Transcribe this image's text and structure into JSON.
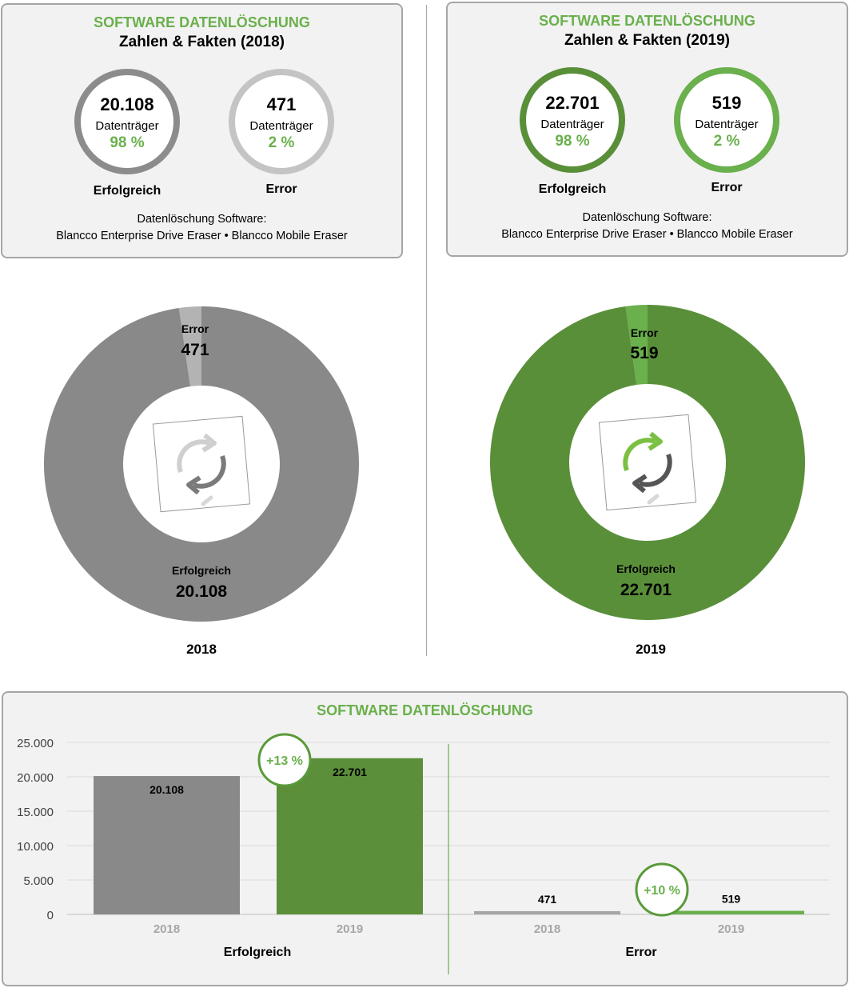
{
  "cards": [
    {
      "title": "SOFTWARE DATENLÖSCHUNG",
      "subtitle": "Zahlen & Fakten (2018)",
      "success": {
        "value": "20.108",
        "unit": "Datenträger",
        "pct": "98 %",
        "label": "Erfolgreich",
        "color": "#8c8c8c"
      },
      "error": {
        "value": "471",
        "unit": "Datenträger",
        "pct": "2 %",
        "label": "Error",
        "color": "#c4c4c4"
      },
      "foot_label": "Datenlöschung Software:",
      "foot_products": "Blancco Enterprise Drive Eraser • Blancco Mobile Eraser"
    },
    {
      "title": "SOFTWARE DATENLÖSCHUNG",
      "subtitle": "Zahlen & Fakten (2019)",
      "success": {
        "value": "22.701",
        "unit": "Datenträger",
        "pct": "98 %",
        "label": "Erfolgreich",
        "color": "#5a8f3a"
      },
      "error": {
        "value": "519",
        "unit": "Datenträger",
        "pct": "2 %",
        "label": "Error",
        "color": "#6ab04c"
      },
      "foot_label": "Datenlöschung Software:",
      "foot_products": "Blancco Enterprise Drive Eraser • Blancco Mobile Eraser"
    }
  ],
  "bar_panel_title": "SOFTWARE DATENLÖSCHUNG",
  "chart_data": [
    {
      "type": "pie",
      "year": "2018",
      "slices": [
        {
          "name": "Error",
          "label": "Error",
          "value": 471,
          "value_label": "471",
          "color": "#b3b3b3"
        },
        {
          "name": "Erfolgreich",
          "label": "Erfolgreich",
          "value": 20108,
          "value_label": "20.108",
          "color": "#898989"
        }
      ],
      "icon": "refresh-arrows-icon-gray",
      "xlabel": "2018"
    },
    {
      "type": "pie",
      "year": "2019",
      "slices": [
        {
          "name": "Error",
          "label": "Error",
          "value": 519,
          "value_label": "519",
          "color": "#6ab04c"
        },
        {
          "name": "Erfolgreich",
          "label": "Erfolgreich",
          "value": 22701,
          "value_label": "22.701",
          "color": "#5a8f3a"
        }
      ],
      "icon": "refresh-arrows-icon-green",
      "xlabel": "2019"
    },
    {
      "type": "bar",
      "title": "SOFTWARE DATENLÖSCHUNG",
      "ylim": [
        0,
        25000
      ],
      "yticks": [
        0,
        5000,
        10000,
        15000,
        20000,
        25000
      ],
      "ytick_labels": [
        "0",
        "5.000",
        "10.000",
        "15.000",
        "20.000",
        "25.000"
      ],
      "grid": true,
      "groups": [
        {
          "name": "Erfolgreich",
          "categories": [
            "2018",
            "2019"
          ],
          "values": [
            20108,
            22701
          ],
          "value_labels": [
            "20.108",
            "22.701"
          ],
          "colors": [
            "#898989",
            "#5b8f3a"
          ],
          "change_label": "+13 %"
        },
        {
          "name": "Error",
          "categories": [
            "2018",
            "2019"
          ],
          "values": [
            471,
            519
          ],
          "value_labels": [
            "471",
            "519"
          ],
          "colors": [
            "#a6a6a6",
            "#6ab04c"
          ],
          "change_label": "+10 %"
        }
      ]
    }
  ]
}
